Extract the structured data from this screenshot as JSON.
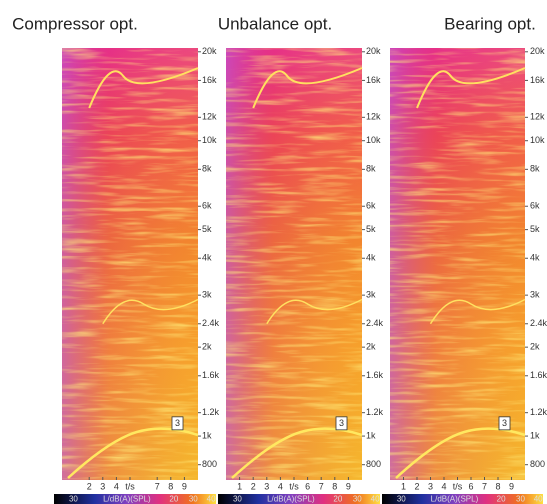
{
  "chart_data": [
    {
      "type": "spectrogram",
      "title": "Compressor opt.",
      "log_y": true,
      "ylim": [
        710,
        20600
      ],
      "yticks": [
        {
          "value": 20000,
          "label": "20k"
        },
        {
          "value": 16000,
          "label": "16k"
        },
        {
          "value": 12000,
          "label": "12k"
        },
        {
          "value": 10000,
          "label": "10k"
        },
        {
          "value": 8000,
          "label": "8k"
        },
        {
          "value": 6000,
          "label": "6k"
        },
        {
          "value": 5000,
          "label": "5k"
        },
        {
          "value": 4000,
          "label": "4k"
        },
        {
          "value": 3000,
          "label": "3k"
        },
        {
          "value": 2400,
          "label": "2.4k"
        },
        {
          "value": 2000,
          "label": "2k"
        },
        {
          "value": 1600,
          "label": "1.6k"
        },
        {
          "value": 1200,
          "label": "1.2k"
        },
        {
          "value": 1000,
          "label": "1k"
        },
        800
      ],
      "xlim": [
        0,
        10
      ],
      "xticks": [
        2,
        3,
        4,
        {
          "value": 5,
          "label": "t/s"
        },
        7,
        8,
        9
      ],
      "annotation": "3",
      "colorbar_labels": [
        "30",
        "L/dB(A)(SPL)",
        "20",
        "30",
        "40"
      ]
    },
    {
      "type": "spectrogram",
      "title": "Unbalance opt.",
      "log_y": true,
      "ylim": [
        710,
        20600
      ],
      "yticks": [
        {
          "value": 20000,
          "label": "20k"
        },
        {
          "value": 16000,
          "label": "16k"
        },
        {
          "value": 12000,
          "label": "12k"
        },
        {
          "value": 10000,
          "label": "10k"
        },
        {
          "value": 8000,
          "label": "8k"
        },
        {
          "value": 6000,
          "label": "6k"
        },
        {
          "value": 5000,
          "label": "5k"
        },
        {
          "value": 4000,
          "label": "4k"
        },
        {
          "value": 3000,
          "label": "3k"
        },
        {
          "value": 2400,
          "label": "2.4k"
        },
        {
          "value": 2000,
          "label": "2k"
        },
        {
          "value": 1600,
          "label": "1.6k"
        },
        {
          "value": 1200,
          "label": "1.2k"
        },
        {
          "value": 1000,
          "label": "1k"
        },
        800
      ],
      "xlim": [
        0,
        10
      ],
      "xticks": [
        1,
        2,
        3,
        4,
        {
          "value": 5,
          "label": "t/s"
        },
        6,
        7,
        8,
        9
      ],
      "annotation": "3",
      "colorbar_labels": [
        "30",
        "L/dB(A)(SPL)",
        "20",
        "30",
        "40"
      ]
    },
    {
      "type": "spectrogram",
      "title": "Bearing opt.",
      "log_y": true,
      "ylim": [
        710,
        20600
      ],
      "yticks": [
        {
          "value": 20000,
          "label": "20k"
        },
        {
          "value": 16000,
          "label": "16k"
        },
        {
          "value": 12000,
          "label": "12k"
        },
        {
          "value": 10000,
          "label": "10k"
        },
        {
          "value": 8000,
          "label": "8k"
        },
        {
          "value": 6000,
          "label": "6k"
        },
        {
          "value": 5000,
          "label": "5k"
        },
        {
          "value": 4000,
          "label": "4k"
        },
        {
          "value": 3000,
          "label": "3k"
        },
        {
          "value": 2400,
          "label": "2.4k"
        },
        {
          "value": 2000,
          "label": "2k"
        },
        {
          "value": 1600,
          "label": "1.6k"
        },
        {
          "value": 1200,
          "label": "1.2k"
        },
        {
          "value": 1000,
          "label": "1k"
        },
        800
      ],
      "xlim": [
        0,
        10
      ],
      "xticks": [
        1,
        2,
        3,
        4,
        {
          "value": 5,
          "label": "t/s"
        },
        6,
        7,
        8,
        9
      ],
      "annotation": "3",
      "colorbar_labels": [
        "30",
        "L/dB(A)(SPL)",
        "20",
        "30",
        "40"
      ]
    }
  ]
}
